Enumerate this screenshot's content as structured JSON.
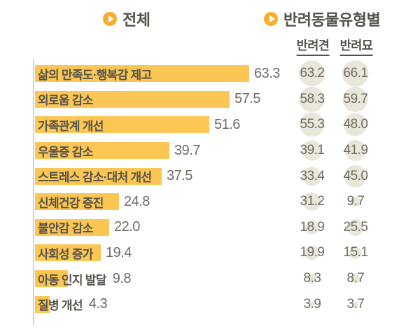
{
  "colors": {
    "bar": "#fbc653",
    "bullet": "#f9ad29",
    "bubble": "#e9e6da",
    "text_dark": "#55524b",
    "value_gray": "#6f6c65",
    "axis": "#d4d3ce"
  },
  "headers": {
    "total": "전체",
    "by_type": "반려동물유형별",
    "dog": "반려견",
    "cat": "반려묘"
  },
  "chart_data": {
    "type": "bar",
    "orientation": "horizontal",
    "title": "",
    "section_titles": [
      "전체",
      "반려동물유형별"
    ],
    "column_headers": [
      "반려견",
      "반려묘"
    ],
    "categories": [
      "삶의 만족도·행복감 제고",
      "외로움 감소",
      "가족관계 개선",
      "우울증 감소",
      "스트레스 감소·대처 개선",
      "신체건강 증진",
      "불안감 감소",
      "사회성 증가",
      "아동 인지 발달",
      "질병 개선"
    ],
    "series": [
      {
        "name": "전체",
        "display": "bar",
        "values": [
          63.3,
          57.5,
          51.6,
          39.7,
          37.5,
          24.8,
          22.0,
          19.4,
          9.8,
          4.3
        ]
      },
      {
        "name": "반려견",
        "display": "bubble",
        "values": [
          63.2,
          58.3,
          55.3,
          39.1,
          33.4,
          31.2,
          18.9,
          19.9,
          8.3,
          3.9
        ]
      },
      {
        "name": "반려묘",
        "display": "bubble",
        "values": [
          66.1,
          59.7,
          48.0,
          41.9,
          45.0,
          9.7,
          25.5,
          15.1,
          8.7,
          3.7
        ]
      }
    ],
    "value_format": "one_decimal",
    "xlim": [
      0,
      70
    ],
    "grid": false,
    "legend_position": "top",
    "bubble_scale": "area_proportional"
  }
}
